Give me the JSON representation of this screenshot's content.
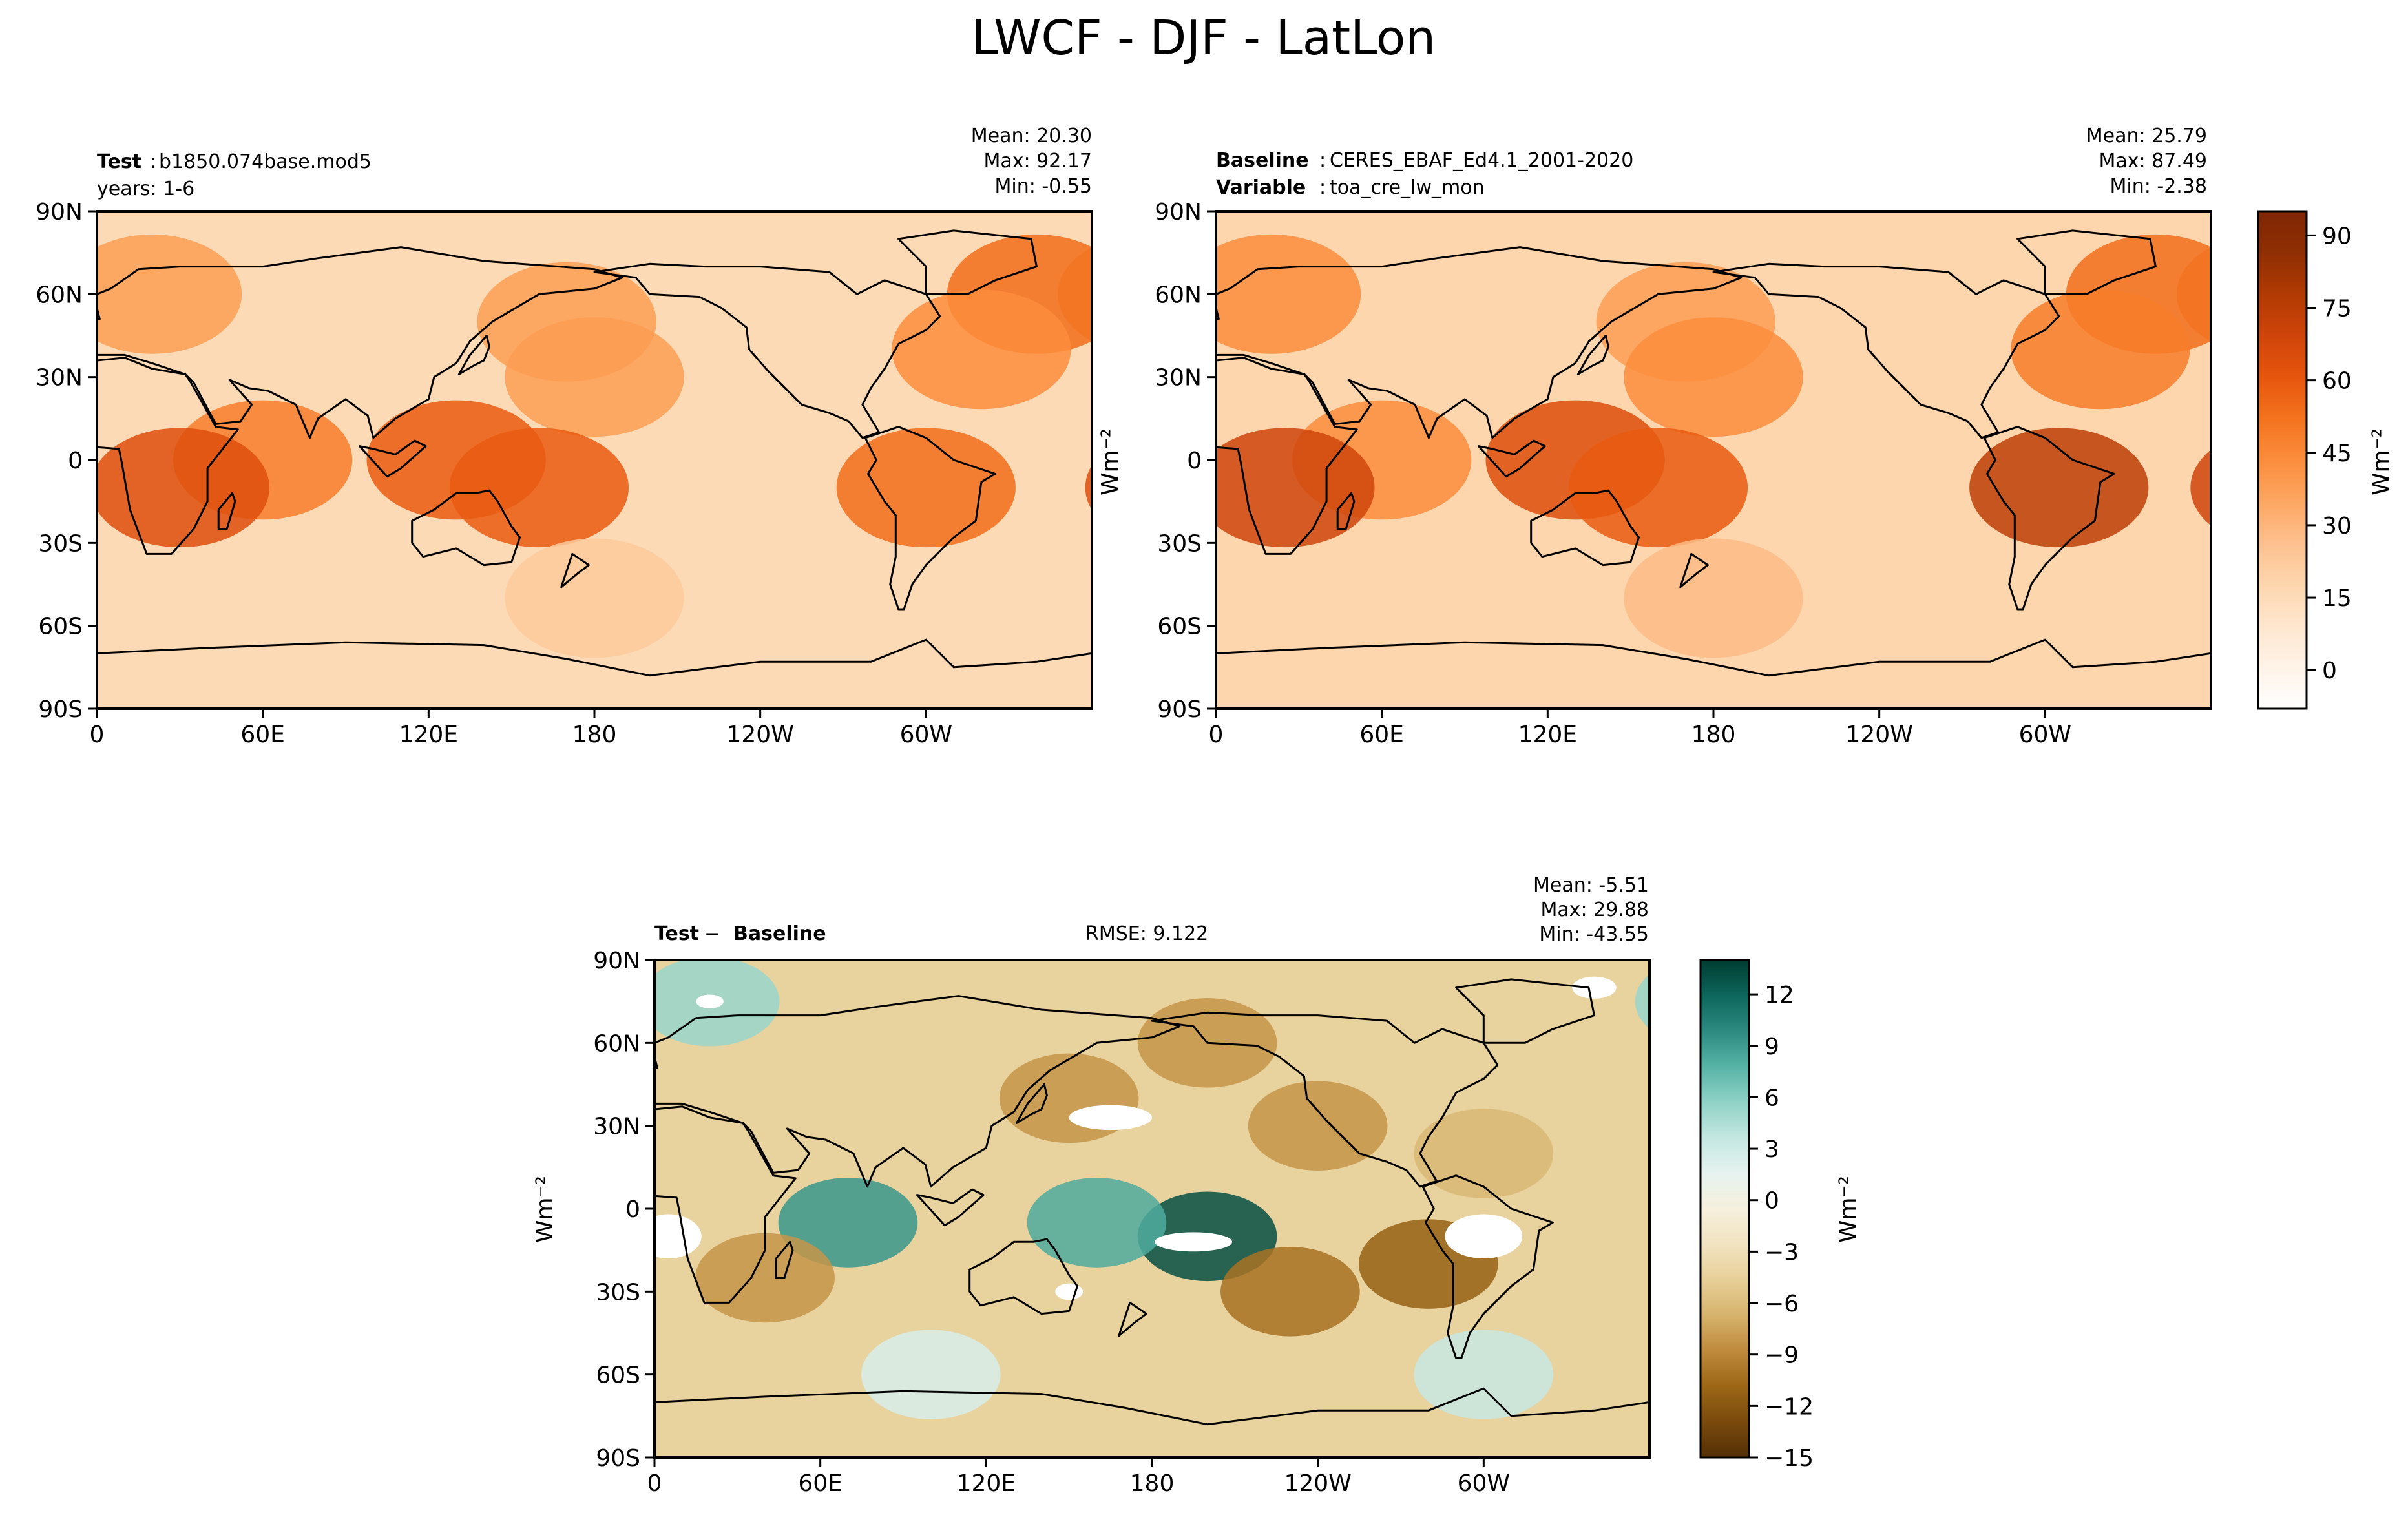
{
  "figure": {
    "title": "LWCF - DJF - LatLon"
  },
  "colors": {
    "orange": [
      "#ffffff",
      "#fff3e8",
      "#fee6ce",
      "#fdd6ae",
      "#fdc08e",
      "#fda762",
      "#fb8d3d",
      "#f4731e",
      "#e6550d",
      "#cf440a",
      "#b13a03",
      "#8f2e03",
      "#7f2704"
    ],
    "brbg": [
      "#543005",
      "#7a4a0d",
      "#9c6616",
      "#bf8a3c",
      "#d6b36c",
      "#e7cf98",
      "#f2e3c0",
      "#f6f0dd",
      "#e6f3f0",
      "#c3e7e1",
      "#8fd2c6",
      "#56b3a6",
      "#2c8a80",
      "#0d665c",
      "#003c30"
    ],
    "coast": "#000000",
    "land_mask": "#ffffff"
  },
  "chart_data": [
    {
      "type": "heatmap",
      "panel": "test",
      "label_bold": "Test",
      "label_sep": ":",
      "label_value": "b1850.074base.mod5",
      "sublabel": "years: 1-6",
      "stats": {
        "mean": "Mean: 20.30",
        "max": "Max: 92.17",
        "min": "Min: -0.55"
      },
      "xticks": [
        "0",
        "60E",
        "120E",
        "180",
        "120W",
        "60W"
      ],
      "yticks": [
        "90N",
        "60N",
        "30N",
        "0",
        "30S",
        "60S",
        "90S"
      ],
      "xlim": [
        0,
        360
      ],
      "ylim": [
        -90,
        90
      ],
      "ylabel": "",
      "value_range": [
        -5,
        95
      ],
      "field": [
        {
          "lat": 60,
          "lon": 20,
          "value": 40
        },
        {
          "lat": 60,
          "lon": 340,
          "value": 55
        },
        {
          "lat": 50,
          "lon": 170,
          "value": 40
        },
        {
          "lat": 40,
          "lon": 320,
          "value": 45
        },
        {
          "lat": 30,
          "lon": 180,
          "value": 40
        },
        {
          "lat": 0,
          "lon": 60,
          "value": 50
        },
        {
          "lat": 0,
          "lon": 130,
          "value": 60
        },
        {
          "lat": -10,
          "lon": 160,
          "value": 60
        },
        {
          "lat": -10,
          "lon": 30,
          "value": 65
        },
        {
          "lat": -10,
          "lon": 300,
          "value": 55
        },
        {
          "lat": -50,
          "lon": 180,
          "value": 25
        }
      ]
    },
    {
      "type": "heatmap",
      "panel": "baseline",
      "label_bold": "Baseline",
      "label_sep": ":",
      "label_value": "CERES_EBAF_Ed4.1_2001-2020",
      "label2_bold": "Variable",
      "label2_sep": ":",
      "label2_value": "toa_cre_lw_mon",
      "stats": {
        "mean": "Mean: 25.79",
        "max": "Max: 87.49",
        "min": "Min: -2.38"
      },
      "xticks": [
        "0",
        "60E",
        "120E",
        "180",
        "120W",
        "60W"
      ],
      "yticks": [
        "90N",
        "60N",
        "30N",
        "0",
        "30S",
        "60S",
        "90S"
      ],
      "xlim": [
        0,
        360
      ],
      "ylim": [
        -90,
        90
      ],
      "ylabel": "Wm⁻²",
      "value_range": [
        -5,
        95
      ],
      "field": [
        {
          "lat": 60,
          "lon": 20,
          "value": 45
        },
        {
          "lat": 60,
          "lon": 340,
          "value": 55
        },
        {
          "lat": 50,
          "lon": 170,
          "value": 40
        },
        {
          "lat": 40,
          "lon": 320,
          "value": 50
        },
        {
          "lat": 30,
          "lon": 180,
          "value": 45
        },
        {
          "lat": 0,
          "lon": 60,
          "value": 45
        },
        {
          "lat": 0,
          "lon": 130,
          "value": 65
        },
        {
          "lat": -10,
          "lon": 160,
          "value": 60
        },
        {
          "lat": -10,
          "lon": 25,
          "value": 70
        },
        {
          "lat": -10,
          "lon": 305,
          "value": 75
        },
        {
          "lat": -50,
          "lon": 180,
          "value": 30
        }
      ],
      "colorbar": {
        "label": "Wm⁻²",
        "ticks": [
          "90",
          "75",
          "60",
          "45",
          "30",
          "15",
          "0"
        ],
        "tick_values": [
          90,
          75,
          60,
          45,
          30,
          15,
          0
        ],
        "range": [
          -8,
          95
        ]
      }
    },
    {
      "type": "heatmap",
      "panel": "diff",
      "label_bold1": "Test",
      "label_minus": " − ",
      "label_bold2": "Baseline",
      "rmse": "RMSE: 9.122",
      "stats": {
        "mean": "Mean: -5.51",
        "max": "Max: 29.88",
        "min": "Min: -43.55"
      },
      "xticks": [
        "0",
        "60E",
        "120E",
        "180",
        "120W",
        "60W"
      ],
      "yticks": [
        "90N",
        "60N",
        "30N",
        "0",
        "30S",
        "60S",
        "90S"
      ],
      "xlim": [
        0,
        360
      ],
      "ylim": [
        -90,
        90
      ],
      "ylabel": "Wm⁻²",
      "value_range": [
        -15,
        15
      ],
      "field": [
        {
          "lat": 75,
          "lon": 20,
          "value": 6
        },
        {
          "lat": 60,
          "lon": 200,
          "value": -8
        },
        {
          "lat": 40,
          "lon": 150,
          "value": -8
        },
        {
          "lat": 30,
          "lon": 240,
          "value": -8
        },
        {
          "lat": 20,
          "lon": 300,
          "value": -6
        },
        {
          "lat": -5,
          "lon": 70,
          "value": 10
        },
        {
          "lat": -10,
          "lon": 200,
          "value": 14
        },
        {
          "lat": -5,
          "lon": 160,
          "value": 9
        },
        {
          "lat": -20,
          "lon": 280,
          "value": -11
        },
        {
          "lat": -30,
          "lon": 230,
          "value": -10
        },
        {
          "lat": -25,
          "lon": 40,
          "value": -8
        },
        {
          "lat": -60,
          "lon": 100,
          "value": 3
        },
        {
          "lat": -60,
          "lon": 300,
          "value": 4
        }
      ],
      "colorbar": {
        "label": "Wm⁻²",
        "ticks": [
          "12",
          "9",
          "6",
          "3",
          "0",
          "−3",
          "−6",
          "−9",
          "−12",
          "−15"
        ],
        "tick_values": [
          12,
          9,
          6,
          3,
          0,
          -3,
          -6,
          -9,
          -12,
          -15
        ],
        "range": [
          -15,
          14
        ]
      }
    }
  ]
}
